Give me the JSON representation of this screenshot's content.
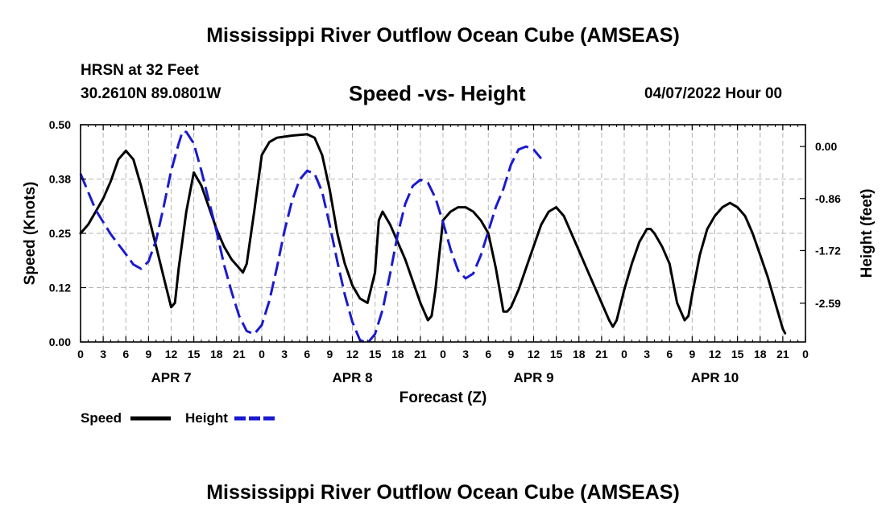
{
  "header": {
    "title": "Mississippi River Outflow Ocean Cube (AMSEAS)",
    "station": "HRSN at 32 Feet",
    "coords": "30.2610N  89.0801W",
    "subtitle": "Speed -vs- Height",
    "datetime": "04/07/2022 Hour 00"
  },
  "footer": {
    "title": "Mississippi River Outflow Ocean Cube (AMSEAS)"
  },
  "colors": {
    "speed": "#000000",
    "height": "#1a1ad0",
    "grid": "#b4b4b4"
  },
  "chart_data": {
    "type": "line",
    "title": "Speed -vs- Height",
    "xlabel": "Forecast (Z)",
    "ylabel": "Speed (Knots)",
    "y2label": "Height (feet)",
    "xlim": [
      0,
      96
    ],
    "ylim": [
      0,
      0.5
    ],
    "y2lim": [
      -3.23,
      0.36
    ],
    "x_ticks": [
      0,
      3,
      6,
      9,
      12,
      15,
      18,
      21,
      24,
      27,
      30,
      33,
      36,
      39,
      42,
      45,
      48,
      51,
      54,
      57,
      60,
      63,
      66,
      69,
      72,
      75,
      78,
      81,
      84,
      87,
      90,
      93,
      96
    ],
    "x_tick_labels": [
      "0",
      "3",
      "6",
      "9",
      "12",
      "15",
      "18",
      "21",
      "0",
      "3",
      "6",
      "9",
      "12",
      "15",
      "18",
      "21",
      "0",
      "3",
      "6",
      "9",
      "12",
      "15",
      "18",
      "21",
      "0",
      "3",
      "6",
      "9",
      "12",
      "15",
      "18",
      "21",
      "0"
    ],
    "y_ticks": [
      0,
      0.125,
      0.25,
      0.375,
      0.5
    ],
    "y_tick_labels": [
      "0.00",
      "0.12",
      "0.25",
      "0.38",
      "0.50"
    ],
    "y2_ticks": [
      0,
      -0.86,
      -1.72,
      -2.59
    ],
    "y2_tick_labels": [
      "0.00",
      "-0.86",
      "-1.72",
      "-2.59"
    ],
    "day_labels": [
      {
        "x": 12,
        "label": "APR 7"
      },
      {
        "x": 36,
        "label": "APR 8"
      },
      {
        "x": 60,
        "label": "APR 9"
      },
      {
        "x": 84,
        "label": "APR 10"
      }
    ],
    "legend": [
      "Speed",
      "Height"
    ],
    "series": [
      {
        "name": "Speed",
        "axis": "left",
        "style": "solid",
        "points": [
          [
            0,
            0.25
          ],
          [
            1,
            0.27
          ],
          [
            2,
            0.3
          ],
          [
            3,
            0.33
          ],
          [
            4,
            0.37
          ],
          [
            5,
            0.42
          ],
          [
            6,
            0.44
          ],
          [
            7,
            0.42
          ],
          [
            8,
            0.36
          ],
          [
            9,
            0.29
          ],
          [
            10,
            0.22
          ],
          [
            11,
            0.15
          ],
          [
            12,
            0.08
          ],
          [
            12.5,
            0.09
          ],
          [
            13,
            0.17
          ],
          [
            14,
            0.3
          ],
          [
            15,
            0.39
          ],
          [
            16,
            0.36
          ],
          [
            17,
            0.31
          ],
          [
            18,
            0.26
          ],
          [
            19,
            0.22
          ],
          [
            20,
            0.19
          ],
          [
            21,
            0.17
          ],
          [
            21.5,
            0.16
          ],
          [
            22,
            0.18
          ],
          [
            23,
            0.3
          ],
          [
            24,
            0.43
          ],
          [
            25,
            0.46
          ],
          [
            26,
            0.47
          ],
          [
            28,
            0.475
          ],
          [
            30,
            0.478
          ],
          [
            31,
            0.47
          ],
          [
            32,
            0.43
          ],
          [
            33,
            0.35
          ],
          [
            34,
            0.25
          ],
          [
            35,
            0.18
          ],
          [
            36,
            0.13
          ],
          [
            37,
            0.1
          ],
          [
            38,
            0.09
          ],
          [
            39,
            0.16
          ],
          [
            39.5,
            0.28
          ],
          [
            40,
            0.3
          ],
          [
            41,
            0.27
          ],
          [
            42,
            0.23
          ],
          [
            43,
            0.19
          ],
          [
            44,
            0.14
          ],
          [
            45,
            0.09
          ],
          [
            46,
            0.05
          ],
          [
            46.5,
            0.06
          ],
          [
            47,
            0.12
          ],
          [
            48,
            0.28
          ],
          [
            49,
            0.3
          ],
          [
            50,
            0.31
          ],
          [
            51,
            0.31
          ],
          [
            52,
            0.3
          ],
          [
            53,
            0.28
          ],
          [
            54,
            0.25
          ],
          [
            55,
            0.17
          ],
          [
            56,
            0.07
          ],
          [
            56.5,
            0.07
          ],
          [
            57,
            0.08
          ],
          [
            58,
            0.12
          ],
          [
            59,
            0.17
          ],
          [
            60,
            0.22
          ],
          [
            61,
            0.27
          ],
          [
            62,
            0.3
          ],
          [
            63,
            0.31
          ],
          [
            64,
            0.29
          ],
          [
            65,
            0.25
          ],
          [
            66,
            0.21
          ],
          [
            67,
            0.17
          ],
          [
            68,
            0.13
          ],
          [
            69,
            0.09
          ],
          [
            70,
            0.05
          ],
          [
            70.5,
            0.035
          ],
          [
            71,
            0.05
          ],
          [
            72,
            0.12
          ],
          [
            73,
            0.18
          ],
          [
            74,
            0.23
          ],
          [
            75,
            0.26
          ],
          [
            75.5,
            0.26
          ],
          [
            76,
            0.25
          ],
          [
            77,
            0.22
          ],
          [
            78,
            0.18
          ],
          [
            79,
            0.09
          ],
          [
            80,
            0.05
          ],
          [
            80.5,
            0.06
          ],
          [
            81,
            0.11
          ],
          [
            82,
            0.2
          ],
          [
            83,
            0.26
          ],
          [
            84,
            0.29
          ],
          [
            85,
            0.31
          ],
          [
            86,
            0.32
          ],
          [
            87,
            0.31
          ],
          [
            88,
            0.29
          ],
          [
            89,
            0.25
          ],
          [
            90,
            0.2
          ],
          [
            91,
            0.15
          ],
          [
            92,
            0.09
          ],
          [
            93,
            0.03
          ],
          [
            93.3,
            0.02
          ]
        ]
      },
      {
        "name": "Height",
        "axis": "right",
        "style": "dashed",
        "points": [
          [
            0,
            -0.45
          ],
          [
            2,
            -1.05
          ],
          [
            4,
            -1.45
          ],
          [
            6,
            -1.78
          ],
          [
            7,
            -1.95
          ],
          [
            8,
            -2.02
          ],
          [
            9,
            -1.9
          ],
          [
            10,
            -1.55
          ],
          [
            11,
            -1.0
          ],
          [
            12,
            -0.4
          ],
          [
            13,
            0.05
          ],
          [
            13.5,
            0.25
          ],
          [
            14,
            0.24
          ],
          [
            15,
            0.05
          ],
          [
            16,
            -0.4
          ],
          [
            17,
            -0.9
          ],
          [
            18,
            -1.4
          ],
          [
            19,
            -1.95
          ],
          [
            20,
            -2.4
          ],
          [
            21,
            -2.8
          ],
          [
            22,
            -3.05
          ],
          [
            23,
            -3.1
          ],
          [
            24,
            -2.95
          ],
          [
            25,
            -2.55
          ],
          [
            26,
            -2.0
          ],
          [
            27,
            -1.4
          ],
          [
            28,
            -0.9
          ],
          [
            29,
            -0.55
          ],
          [
            30,
            -0.4
          ],
          [
            31,
            -0.45
          ],
          [
            32,
            -0.75
          ],
          [
            33,
            -1.3
          ],
          [
            34,
            -1.9
          ],
          [
            35,
            -2.45
          ],
          [
            36,
            -2.9
          ],
          [
            37,
            -3.2
          ],
          [
            38,
            -3.25
          ],
          [
            39,
            -3.1
          ],
          [
            40,
            -2.7
          ],
          [
            41,
            -2.1
          ],
          [
            42,
            -1.45
          ],
          [
            43,
            -0.95
          ],
          [
            44,
            -0.65
          ],
          [
            45,
            -0.55
          ],
          [
            46,
            -0.6
          ],
          [
            47,
            -0.85
          ],
          [
            48,
            -1.25
          ],
          [
            49,
            -1.7
          ],
          [
            50,
            -2.05
          ],
          [
            51,
            -2.18
          ],
          [
            52,
            -2.1
          ],
          [
            53,
            -1.8
          ],
          [
            54,
            -1.4
          ],
          [
            55,
            -1.0
          ],
          [
            56,
            -0.7
          ],
          [
            57,
            -0.3
          ],
          [
            58,
            -0.05
          ],
          [
            59,
            0.0
          ],
          [
            60,
            -0.05
          ],
          [
            61,
            -0.2
          ]
        ]
      }
    ]
  }
}
